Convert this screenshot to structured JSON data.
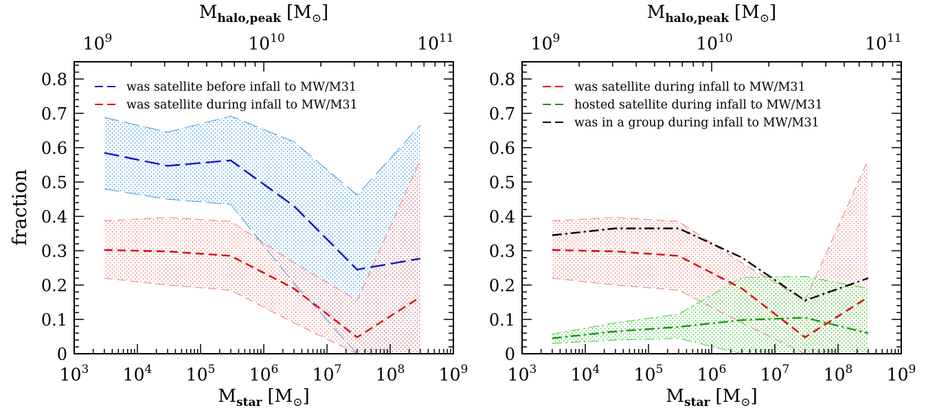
{
  "figure": {
    "ylabel": "fraction",
    "xlabel_main": "M",
    "xlabel_sub": "star",
    "xlabel_unit_open": "[M",
    "xlabel_unit_close": "]",
    "top_label_main": "M",
    "top_label_sub": "halo,peak",
    "top_label_unit_open": "[M",
    "top_label_unit_close": "]",
    "sun_symbol": "⊙"
  },
  "colors": {
    "blue_dark": "#1010cc",
    "blue_light": "#3399e6",
    "red_dark": "#dd0000",
    "red_light": "#ee7777",
    "green_dark": "#119911",
    "green_light": "#33cc33",
    "black": "#000000"
  },
  "chart_data": [
    {
      "type": "line",
      "panel": "left",
      "x_scale": "log",
      "xlim": [
        1000,
        1000000000
      ],
      "ylim": [
        0,
        0.85
      ],
      "xlabel": "Mstar [M⊙]",
      "ylabel": "fraction",
      "x_ticks": [
        {
          "value": 1000,
          "base": "10",
          "exp": "3"
        },
        {
          "value": 10000,
          "base": "10",
          "exp": "4"
        },
        {
          "value": 100000,
          "base": "10",
          "exp": "5"
        },
        {
          "value": 1000000,
          "base": "10",
          "exp": "6"
        },
        {
          "value": 10000000,
          "base": "10",
          "exp": "7"
        },
        {
          "value": 100000000,
          "base": "10",
          "exp": "8"
        },
        {
          "value": 1000000000,
          "base": "10",
          "exp": "9"
        }
      ],
      "y_ticks": [
        "0",
        "0.1",
        "0.2",
        "0.3",
        "0.4",
        "0.5",
        "0.6",
        "0.7",
        "0.8"
      ],
      "top_axis_label": "Mhalo,peak [M⊙]",
      "top_ticks": [
        {
          "mstar": 1000,
          "base": "10",
          "exp": "9"
        },
        {
          "mstar": 1000000,
          "base": "10",
          "exp": "10"
        },
        {
          "mstar": 1000000000,
          "base": "10",
          "exp": "11"
        }
      ],
      "legend_position": "top-left",
      "grid": false,
      "series": [
        {
          "name": "was satellite before infall to MW/M31",
          "color": "#1010cc",
          "band_color": "#3399e6",
          "style": "long-dash",
          "x": [
            3000,
            30000,
            300000,
            3000000,
            30000000,
            300000000
          ],
          "median": [
            0.585,
            0.547,
            0.563,
            0.43,
            0.245,
            0.277
          ],
          "lower": [
            0.48,
            0.45,
            0.435,
            0.205,
            0.0,
            0.0
          ],
          "upper": [
            0.688,
            0.645,
            0.692,
            0.617,
            0.462,
            0.665
          ]
        },
        {
          "name": "was satellite during infall to MW/M31",
          "color": "#dd0000",
          "band_color": "#ee7777",
          "style": "dash",
          "x": [
            3000,
            30000,
            300000,
            3000000,
            30000000,
            300000000
          ],
          "median": [
            0.302,
            0.298,
            0.285,
            0.19,
            0.048,
            0.165
          ],
          "lower": [
            0.22,
            0.2,
            0.185,
            0.09,
            0.0,
            0.0
          ],
          "upper": [
            0.387,
            0.397,
            0.385,
            0.265,
            0.155,
            0.565
          ]
        }
      ]
    },
    {
      "type": "line",
      "panel": "right",
      "x_scale": "log",
      "xlim": [
        1000,
        1000000000
      ],
      "ylim": [
        0,
        0.85
      ],
      "xlabel": "Mstar [M⊙]",
      "ylabel": "",
      "x_ticks": [
        {
          "value": 1000,
          "base": "10",
          "exp": "3"
        },
        {
          "value": 10000,
          "base": "10",
          "exp": "4"
        },
        {
          "value": 100000,
          "base": "10",
          "exp": "5"
        },
        {
          "value": 1000000,
          "base": "10",
          "exp": "6"
        },
        {
          "value": 10000000,
          "base": "10",
          "exp": "7"
        },
        {
          "value": 100000000,
          "base": "10",
          "exp": "8"
        },
        {
          "value": 1000000000,
          "base": "10",
          "exp": "9"
        }
      ],
      "y_ticks": [
        "0",
        "0.1",
        "0.2",
        "0.3",
        "0.4",
        "0.5",
        "0.6",
        "0.7",
        "0.8"
      ],
      "top_axis_label": "Mhalo,peak [M⊙]",
      "top_ticks": [
        {
          "mstar": 1000,
          "base": "10",
          "exp": "9"
        },
        {
          "mstar": 1000000,
          "base": "10",
          "exp": "10"
        },
        {
          "mstar": 1000000000,
          "base": "10",
          "exp": "11"
        }
      ],
      "legend_position": "top-left",
      "grid": false,
      "series": [
        {
          "name": "was satellite during infall to MW/M31",
          "color": "#dd0000",
          "band_color": "#ee7777",
          "style": "dash",
          "x": [
            3000,
            30000,
            300000,
            3000000,
            30000000,
            300000000
          ],
          "median": [
            0.302,
            0.298,
            0.285,
            0.19,
            0.048,
            0.165
          ],
          "lower": [
            0.22,
            0.2,
            0.185,
            0.09,
            0.0,
            0.0
          ],
          "upper": [
            0.387,
            0.397,
            0.385,
            0.265,
            0.155,
            0.565
          ]
        },
        {
          "name": "hosted satellite during infall to MW/M31",
          "color": "#119911",
          "band_color": "#33cc33",
          "style": "dash-dot",
          "x": [
            3000,
            30000,
            300000,
            3000000,
            30000000,
            300000000
          ],
          "median": [
            0.045,
            0.065,
            0.078,
            0.098,
            0.105,
            0.06
          ],
          "lower": [
            0.03,
            0.04,
            0.045,
            0.0,
            0.0,
            0.0
          ],
          "upper": [
            0.057,
            0.09,
            0.115,
            0.222,
            0.225,
            0.19
          ]
        },
        {
          "name": "was in a group during infall to MW/M31",
          "color": "#000000",
          "band_color": "",
          "style": "dash-dot",
          "x": [
            3000,
            30000,
            300000,
            3000000,
            30000000,
            300000000
          ],
          "median": [
            0.345,
            0.365,
            0.365,
            0.28,
            0.155,
            0.22
          ]
        }
      ]
    }
  ]
}
